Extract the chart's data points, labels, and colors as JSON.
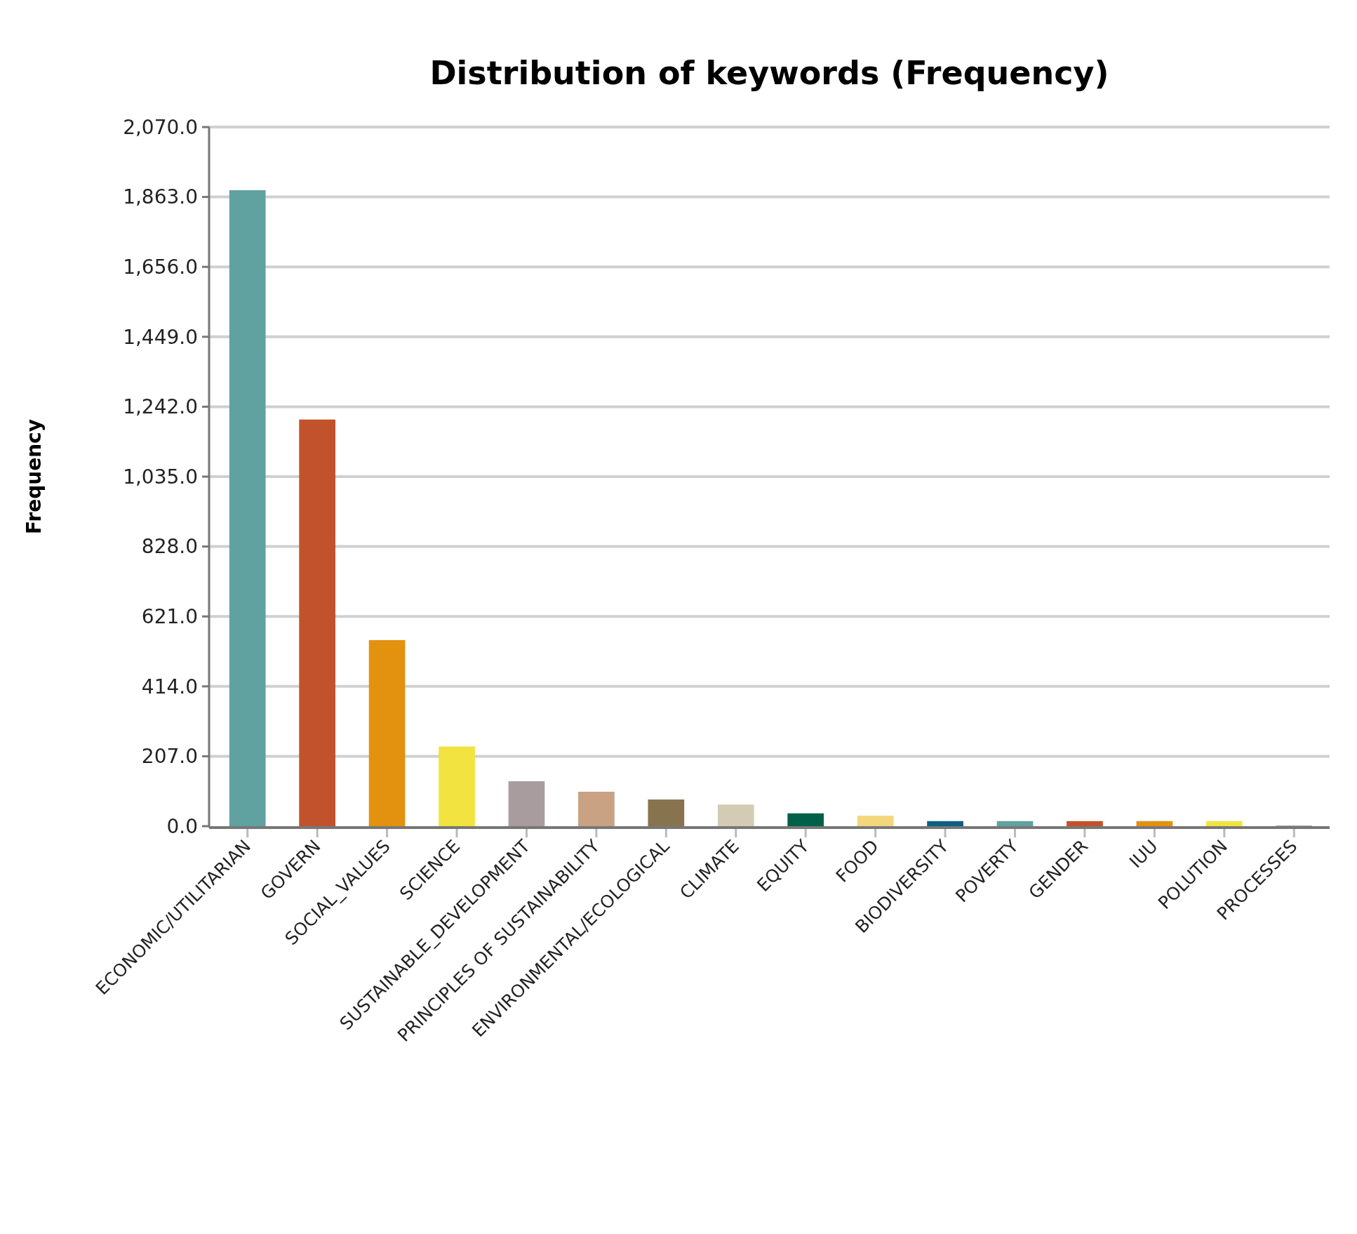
{
  "chart_data": {
    "type": "bar",
    "title": "Distribution of keywords (Frequency)",
    "ylabel": "Frequency",
    "categories": [
      "ECONOMIC/UTILITARIAN",
      "GOVERN",
      "SOCIAL_VALUES",
      "SCIENCE",
      "SUSTAINABLE_DEVELOPMENT",
      "PRINCIPLES OF  SUSTAINABILITY",
      "ENVIRONMENTAL/ECOLOGICAL",
      "CLIMATE",
      "EQUITY",
      "FOOD",
      "BIODIVERSITY",
      "POVERTY",
      "GENDER",
      "IUU",
      "POLUTION",
      "PROCESSES"
    ],
    "values": [
      1883,
      1204,
      551,
      236,
      133,
      102,
      79,
      64,
      38,
      31,
      15,
      15,
      15,
      15,
      15,
      2
    ],
    "colors": [
      "#5fa2a0",
      "#c1522b",
      "#e3920f",
      "#f2e340",
      "#a89c9f",
      "#c9a283",
      "#87744f",
      "#d4cbb4",
      "#00604a",
      "#f4d67c",
      "#0e5f80",
      "#5fa2a0",
      "#c1522b",
      "#e3920f",
      "#f2e340",
      "#a89c9f"
    ],
    "ylim": [
      0,
      2070
    ],
    "yticks": [
      {
        "value": 0,
        "label": "0.0"
      },
      {
        "value": 207,
        "label": "207.0"
      },
      {
        "value": 414,
        "label": "414.0"
      },
      {
        "value": 621,
        "label": "621.0"
      },
      {
        "value": 828,
        "label": "828.0"
      },
      {
        "value": 1035,
        "label": "1,035.0"
      },
      {
        "value": 1242,
        "label": "1,242.0"
      },
      {
        "value": 1449,
        "label": "1,449.0"
      },
      {
        "value": 1656,
        "label": "1,656.0"
      },
      {
        "value": 1863,
        "label": "1,863.0"
      },
      {
        "value": 2070,
        "label": "2,070.0"
      }
    ],
    "grid": "y"
  }
}
